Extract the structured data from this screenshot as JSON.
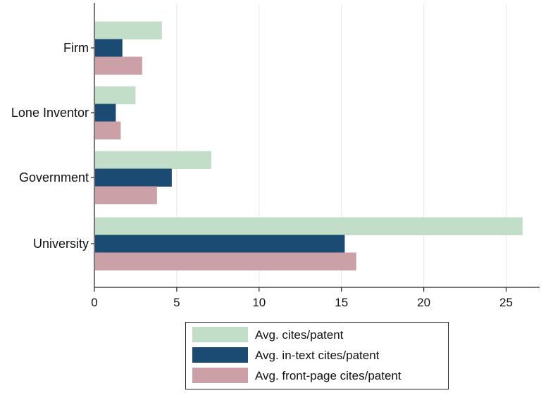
{
  "chart_data": {
    "type": "bar",
    "orientation": "horizontal",
    "categories": [
      "Firm",
      "Lone Inventor",
      "Government",
      "University"
    ],
    "series": [
      {
        "name": "Avg. cites/patent",
        "values": [
          4.1,
          2.5,
          7.1,
          26.0
        ],
        "color": "#c2dec9"
      },
      {
        "name": "Avg. in-text cites/patent",
        "values": [
          1.7,
          1.3,
          4.7,
          15.2
        ],
        "color": "#1b4a72"
      },
      {
        "name": "Avg. front-page cites/patent",
        "values": [
          2.9,
          1.6,
          3.8,
          15.9
        ],
        "color": "#cba0a7"
      }
    ],
    "xlim": [
      0,
      27
    ],
    "xticks": [
      0,
      5,
      10,
      15,
      20,
      25
    ],
    "xtick_labels": [
      "0",
      "5",
      "10",
      "15",
      "20",
      "25"
    ],
    "grid": "vertical",
    "legend_position": "bottom",
    "title": "",
    "xlabel": "",
    "ylabel": ""
  }
}
